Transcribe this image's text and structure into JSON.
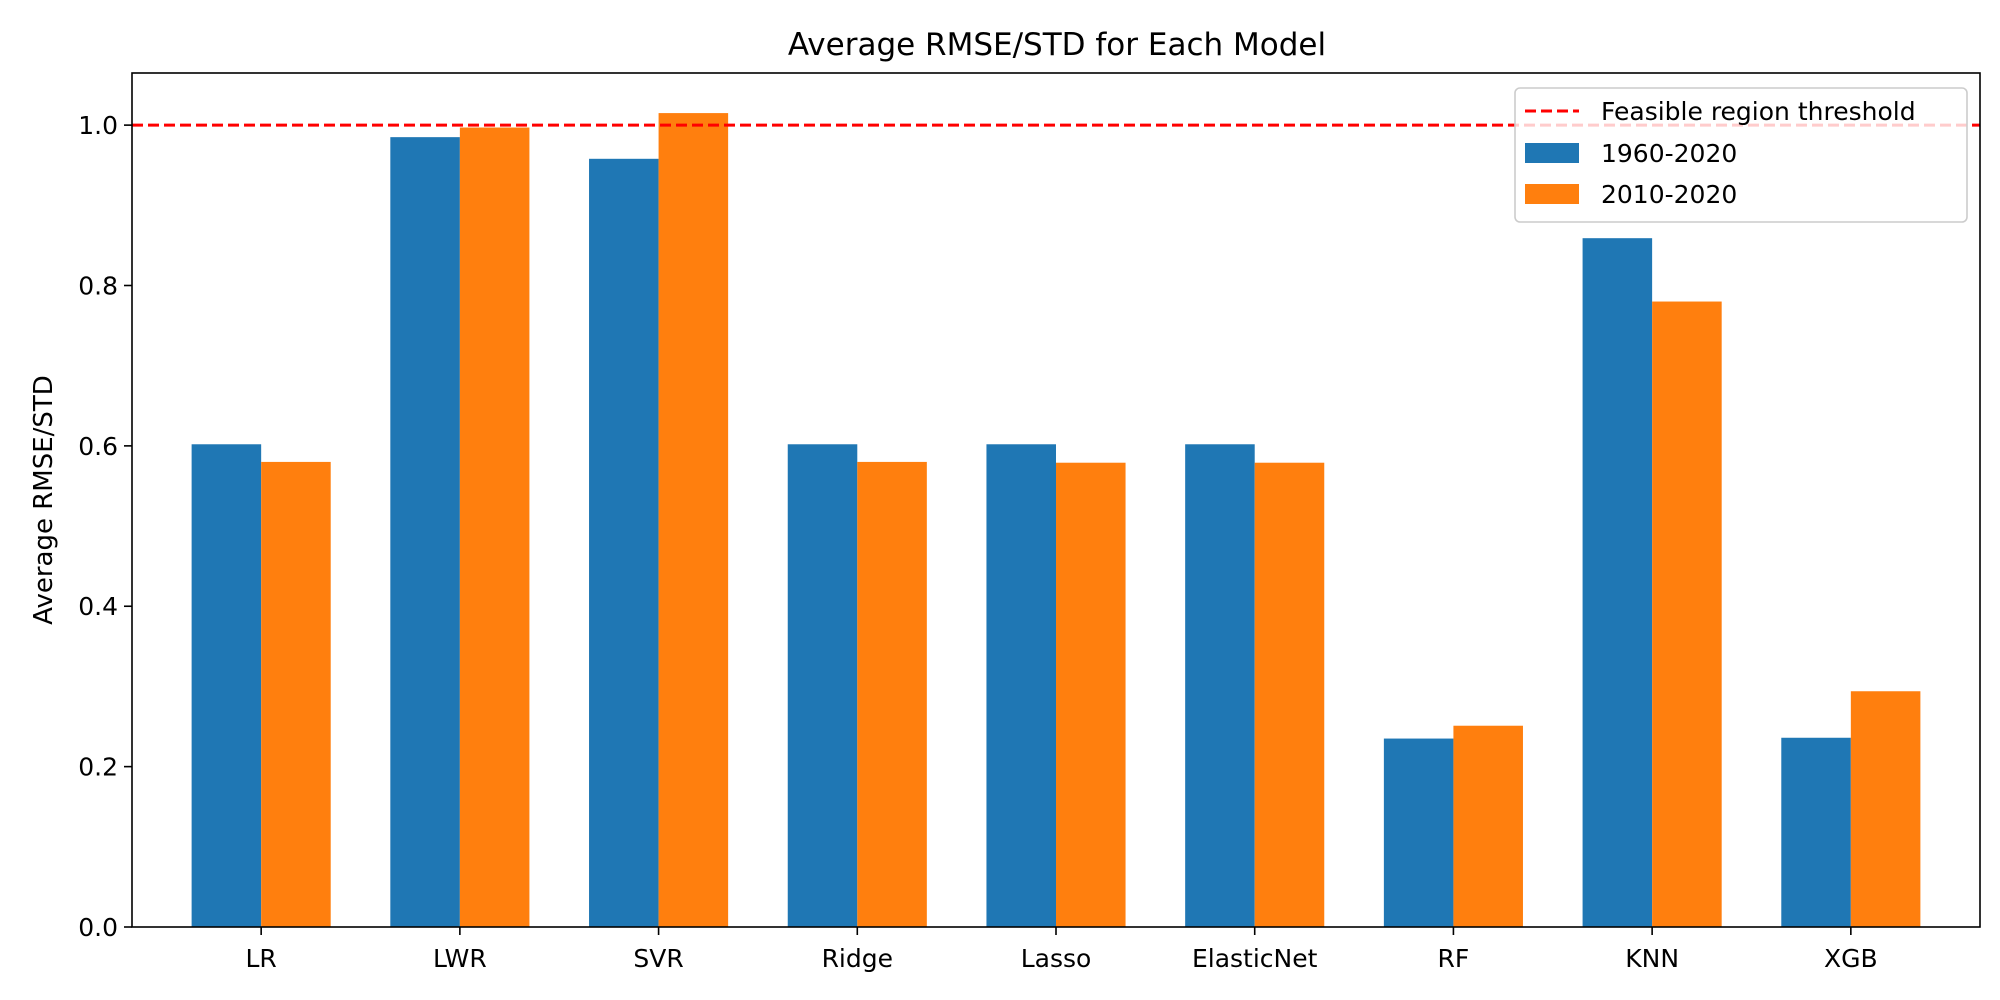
{
  "chart_data": {
    "type": "bar",
    "title": "Average RMSE/STD for Each Model",
    "xlabel": "",
    "ylabel": "Average RMSE/STD",
    "categories": [
      "LR",
      "LWR",
      "SVR",
      "Ridge",
      "Lasso",
      "ElasticNet",
      "RF",
      "KNN",
      "XGB"
    ],
    "series": [
      {
        "name": "1960-2020",
        "color": "#1f77b4",
        "values": [
          0.602,
          0.985,
          0.958,
          0.602,
          0.602,
          0.602,
          0.235,
          0.859,
          0.236
        ]
      },
      {
        "name": "2010-2020",
        "color": "#ff7f0e",
        "values": [
          0.58,
          0.997,
          1.015,
          0.58,
          0.579,
          0.579,
          0.251,
          0.78,
          0.294
        ]
      }
    ],
    "threshold": {
      "name": "Feasible region threshold",
      "value": 1.0,
      "color": "#ff0000",
      "style": "dashed"
    },
    "ylim": [
      0,
      1.065
    ],
    "yticks": [
      0.0,
      0.2,
      0.4,
      0.6,
      0.8,
      1.0
    ],
    "ytick_labels": [
      "0.0",
      "0.2",
      "0.4",
      "0.6",
      "0.8",
      "1.0"
    ],
    "grid": false,
    "legend_position": "top-right"
  }
}
